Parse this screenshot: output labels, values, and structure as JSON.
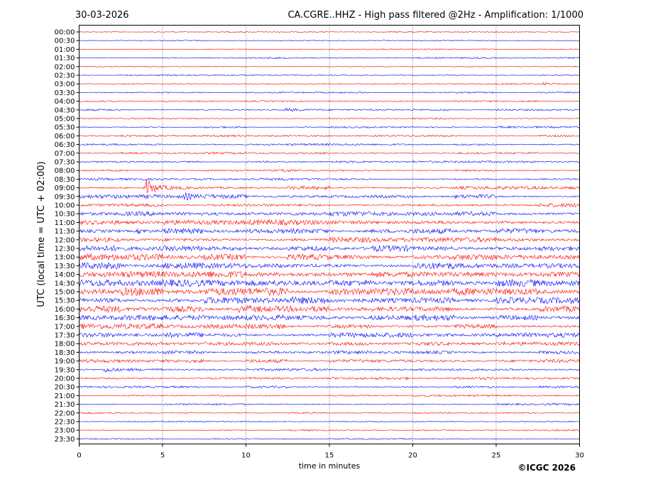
{
  "header": {
    "date": "30-03-2026",
    "title": "CA.CGRE..HHZ - High pass filtered @2Hz - Amplification: 1/1000"
  },
  "copyright": "©ICGC 2026",
  "colors": {
    "trace_a": "#ff0000",
    "trace_b": "#0000ff",
    "grid": "#000000"
  },
  "chart_data": {
    "type": "line",
    "xlabel": "time in minutes",
    "ylabel": "UTC (local time = UTC + 02:00)",
    "xlim": [
      0,
      30
    ],
    "x_ticks": [
      "0",
      "5",
      "10",
      "15",
      "20",
      "25",
      "30"
    ],
    "y_ticks": [
      "00:00",
      "00:30",
      "01:00",
      "01:30",
      "02:00",
      "02:30",
      "03:00",
      "03:30",
      "04:00",
      "04:30",
      "05:00",
      "05:30",
      "06:00",
      "06:30",
      "07:00",
      "07:30",
      "08:00",
      "08:30",
      "09:00",
      "09:30",
      "10:00",
      "10:30",
      "11:00",
      "11:30",
      "12:00",
      "12:30",
      "13:00",
      "13:30",
      "14:00",
      "14:30",
      "15:00",
      "15:30",
      "16:00",
      "16:30",
      "17:00",
      "17:30",
      "18:00",
      "18:30",
      "19:00",
      "19:30",
      "20:00",
      "20:30",
      "21:00",
      "21:30",
      "22:00",
      "22:30",
      "23:00",
      "23:30"
    ],
    "grid_x": true,
    "trace_noise_level": [
      0.5,
      0.5,
      0.5,
      0.6,
      0.5,
      0.5,
      0.6,
      0.6,
      0.6,
      0.8,
      0.7,
      0.8,
      0.8,
      0.9,
      0.9,
      0.9,
      0.8,
      1.0,
      1.6,
      1.6,
      1.6,
      2.0,
      2.2,
      2.2,
      2.3,
      2.6,
      2.8,
      2.7,
      3.0,
      3.0,
      3.2,
      2.8,
      2.6,
      2.4,
      2.2,
      2.0,
      1.6,
      1.4,
      1.4,
      1.2,
      1.0,
      0.9,
      0.9,
      0.8,
      0.7,
      0.6,
      0.6,
      0.5
    ],
    "events": [
      {
        "row": "03:00",
        "minute": 27.8,
        "amplitude": 2
      },
      {
        "row": "04:30",
        "minute": 12.3,
        "amplitude": 2
      },
      {
        "row": "08:00",
        "minute": 12.2,
        "amplitude": 2
      },
      {
        "row": "09:00",
        "minute": 4.0,
        "amplitude": 12
      },
      {
        "row": "09:30",
        "minute": 6.3,
        "amplitude": 4
      },
      {
        "row": "11:30",
        "minute": 3.5,
        "amplitude": 3
      },
      {
        "row": "16:00",
        "minute": 9.5,
        "amplitude": 4
      },
      {
        "row": "19:30",
        "minute": 1.5,
        "amplitude": 4
      }
    ]
  }
}
